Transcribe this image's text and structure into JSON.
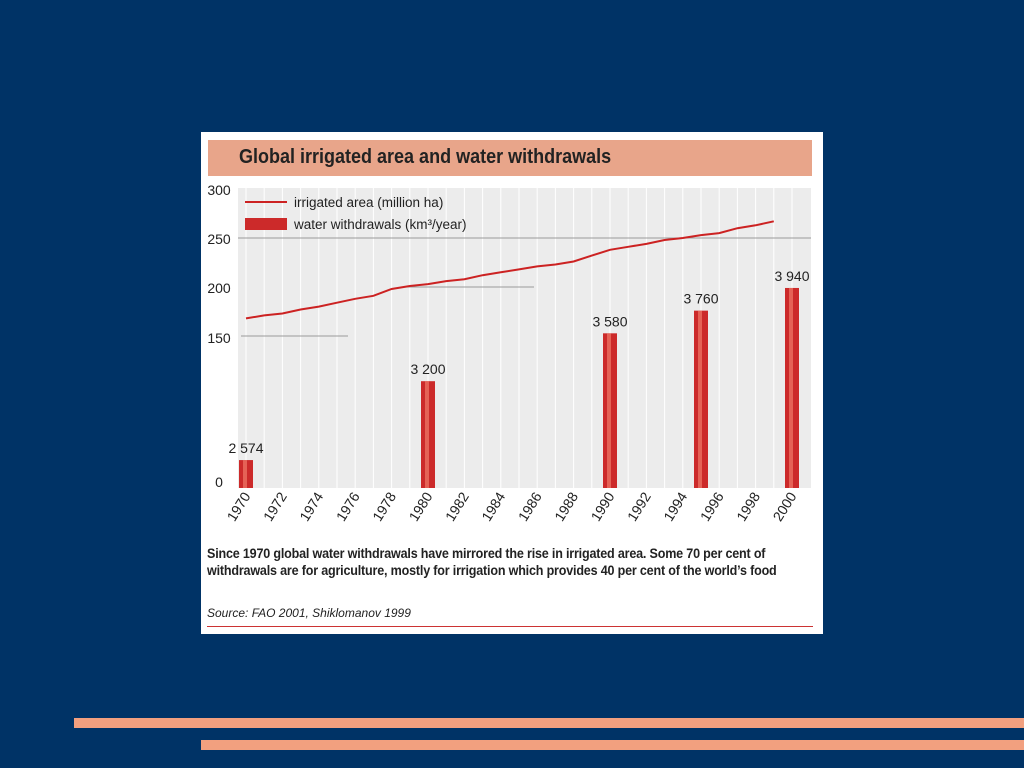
{
  "figure": {
    "title": "Global irrigated area and water withdrawals",
    "caption_line1": "Since 1970 global water withdrawals have mirrored the rise in irrigated area. Some 70 per cent of",
    "caption_line2": "withdrawals are for agriculture, mostly for irrigation which provides 40 per cent of the world’s food",
    "source": "Source: FAO 2001, Shiklomanov 1999"
  },
  "colors": {
    "background": "#003366",
    "title_band": "#e8a58a",
    "plot_bg": "#ececec",
    "line": "#cc2222",
    "bar": "#cc2a2a",
    "stripe": "#f2a07f"
  },
  "chart_data": {
    "type": "bar+line",
    "title": "Global irrigated area and water withdrawals",
    "y_ticks": [
      "0",
      "150",
      "200",
      "250",
      "300"
    ],
    "x_ticks": [
      "1970",
      "1972",
      "1974",
      "1976",
      "1978",
      "1980",
      "1982",
      "1984",
      "1986",
      "1988",
      "1990",
      "1992",
      "1994",
      "1996",
      "1998",
      "2000"
    ],
    "legend": [
      {
        "label": "irrigated area (million ha)",
        "kind": "line"
      },
      {
        "label": "water withdrawals (km³/year)",
        "kind": "bar"
      }
    ],
    "legend_position": "top-left",
    "grid": true,
    "series": [
      {
        "name": "irrigated area (million ha)",
        "kind": "line",
        "x": [
          1970,
          1971,
          1972,
          1973,
          1974,
          1975,
          1976,
          1977,
          1978,
          1979,
          1980,
          1981,
          1982,
          1983,
          1984,
          1985,
          1986,
          1987,
          1988,
          1989,
          1990,
          1991,
          1992,
          1993,
          1994,
          1995,
          1996,
          1997,
          1998,
          1999
        ],
        "y": [
          168,
          171,
          173,
          177,
          180,
          184,
          188,
          191,
          198,
          201,
          203,
          206,
          208,
          212,
          215,
          218,
          221,
          223,
          226,
          232,
          238,
          241,
          244,
          248,
          250,
          253,
          255,
          260,
          263,
          267
        ]
      },
      {
        "name": "water withdrawals (km³/year)",
        "kind": "bar",
        "x": [
          1970,
          1980,
          1990,
          1995,
          2000
        ],
        "y": [
          2574,
          3200,
          3580,
          3760,
          3940
        ],
        "labels": [
          "2 574",
          "3 200",
          "3 580",
          "3 760",
          "3 940"
        ]
      }
    ]
  }
}
